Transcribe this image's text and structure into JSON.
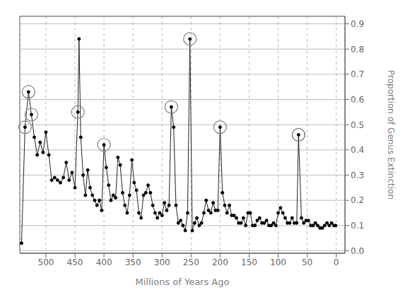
{
  "chart_data": {
    "type": "line",
    "title": "",
    "xlabel": "Millions of Years Ago",
    "ylabel": "Proportion of Genus Extinction",
    "xlim": [
      545,
      -15
    ],
    "ylim": [
      -0.01,
      0.93
    ],
    "xticks": [
      500,
      450,
      400,
      350,
      300,
      250,
      200,
      150,
      100,
      50,
      0
    ],
    "yticks": [
      {
        "value": 0,
        "label": "0.0"
      },
      0.1,
      0.2,
      0.3,
      0.4,
      0.5,
      0.6,
      0.7,
      0.8,
      0.9
    ],
    "grid": true,
    "color": "#222222",
    "marker": "circle",
    "x": [
      542,
      536,
      530,
      525,
      520,
      515,
      510,
      505,
      500,
      495,
      490,
      485,
      480,
      475,
      470,
      465,
      460,
      455,
      450,
      445,
      443,
      440,
      436,
      432,
      428,
      424,
      420,
      416,
      412,
      408,
      404,
      400,
      396,
      392,
      388,
      384,
      380,
      376,
      372,
      368,
      364,
      360,
      356,
      352,
      348,
      344,
      340,
      336,
      332,
      328,
      324,
      320,
      316,
      312,
      308,
      304,
      300,
      296,
      292,
      288,
      284,
      280,
      276,
      272,
      268,
      264,
      260,
      256,
      252,
      248,
      244,
      240,
      236,
      232,
      228,
      224,
      220,
      216,
      212,
      208,
      204,
      200,
      196,
      192,
      188,
      184,
      180,
      176,
      172,
      168,
      164,
      160,
      156,
      152,
      148,
      144,
      140,
      136,
      132,
      128,
      124,
      120,
      116,
      112,
      108,
      104,
      100,
      96,
      92,
      88,
      84,
      80,
      76,
      72,
      68,
      65,
      60,
      56,
      52,
      48,
      44,
      40,
      36,
      32,
      28,
      24,
      20,
      16,
      12,
      8,
      4,
      1
    ],
    "values": [
      0.03,
      0.49,
      0.63,
      0.54,
      0.45,
      0.38,
      0.43,
      0.39,
      0.47,
      0.38,
      0.28,
      0.29,
      0.28,
      0.27,
      0.29,
      0.35,
      0.28,
      0.31,
      0.25,
      0.55,
      0.84,
      0.45,
      0.3,
      0.22,
      0.32,
      0.25,
      0.22,
      0.2,
      0.18,
      0.2,
      0.16,
      0.42,
      0.33,
      0.26,
      0.2,
      0.22,
      0.21,
      0.37,
      0.34,
      0.23,
      0.18,
      0.15,
      0.22,
      0.36,
      0.27,
      0.24,
      0.15,
      0.13,
      0.22,
      0.23,
      0.26,
      0.23,
      0.18,
      0.15,
      0.13,
      0.15,
      0.14,
      0.19,
      0.16,
      0.18,
      0.57,
      0.49,
      0.18,
      0.11,
      0.12,
      0.1,
      0.08,
      0.15,
      0.84,
      0.08,
      0.11,
      0.13,
      0.1,
      0.11,
      0.15,
      0.2,
      0.16,
      0.15,
      0.19,
      0.16,
      0.16,
      0.49,
      0.23,
      0.18,
      0.15,
      0.18,
      0.14,
      0.14,
      0.13,
      0.11,
      0.11,
      0.13,
      0.1,
      0.15,
      0.15,
      0.1,
      0.1,
      0.12,
      0.13,
      0.11,
      0.11,
      0.12,
      0.1,
      0.1,
      0.11,
      0.1,
      0.15,
      0.17,
      0.15,
      0.13,
      0.11,
      0.11,
      0.13,
      0.11,
      0.11,
      0.46,
      0.13,
      0.11,
      0.12,
      0.12,
      0.1,
      0.1,
      0.11,
      0.1,
      0.09,
      0.09,
      0.1,
      0.11,
      0.1,
      0.11,
      0.1,
      0.1
    ],
    "circled_x": [
      536,
      530,
      525,
      445,
      400,
      284,
      252,
      200,
      65,
      65
    ],
    "circled_y": [
      0.49,
      0.63,
      0.54,
      0.55,
      0.42,
      0.57,
      0.84,
      0.49,
      0.46,
      0.46
    ]
  }
}
